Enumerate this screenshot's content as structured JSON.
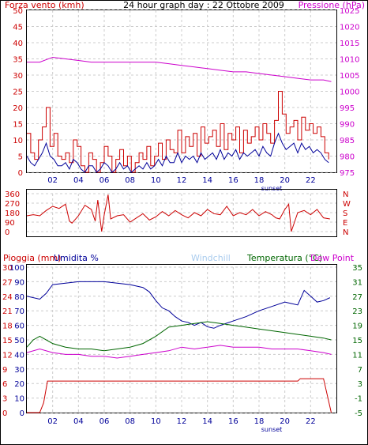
{
  "chart_data": [
    {
      "type": "line",
      "title": "24 hour graph day : 22 Ottobre 2009",
      "left_axis_label": "Forza vento (kmh)",
      "right_axis_label": "Pressione (hPa)",
      "left_ylim": [
        0,
        50
      ],
      "left_ticks": [
        "0",
        "5",
        "10",
        "15",
        "20",
        "25",
        "30",
        "35",
        "40",
        "45",
        "50"
      ],
      "right_ylim": [
        975,
        1025
      ],
      "right_ticks": [
        "975",
        "980",
        "985",
        "990",
        "995",
        "1000",
        "1005",
        "1010",
        "1015",
        "1020",
        "1025"
      ],
      "x_ticks": [
        "02",
        "04",
        "06",
        "08",
        "10",
        "12",
        "14",
        "16",
        "18",
        "20",
        "22"
      ],
      "x_annotation": "sunset",
      "xlim": [
        0,
        24
      ],
      "grid": true,
      "series": [
        {
          "color": "#cc0000",
          "axis": "left",
          "x": [
            0,
            0.3,
            0.6,
            0.9,
            1.2,
            1.5,
            1.8,
            2.1,
            2.4,
            2.7,
            3.0,
            3.3,
            3.6,
            3.9,
            4.2,
            4.5,
            4.8,
            5.1,
            5.4,
            5.7,
            6.0,
            6.3,
            6.6,
            6.9,
            7.2,
            7.5,
            7.8,
            8.1,
            8.4,
            8.7,
            9.0,
            9.3,
            9.6,
            9.9,
            10.2,
            10.5,
            10.8,
            11.1,
            11.4,
            11.7,
            12.0,
            12.3,
            12.6,
            12.9,
            13.2,
            13.5,
            13.8,
            14.1,
            14.4,
            14.7,
            15.0,
            15.3,
            15.6,
            15.9,
            16.2,
            16.5,
            16.8,
            17.1,
            17.4,
            17.7,
            18.0,
            18.3,
            18.6,
            18.9,
            19.2,
            19.5,
            19.8,
            20.1,
            20.4,
            20.7,
            21.0,
            21.3,
            21.6,
            21.9,
            22.2,
            22.5,
            22.8,
            23.1,
            23.4
          ],
          "values": [
            12,
            6,
            4,
            10,
            14,
            20,
            8,
            12,
            5,
            4,
            6,
            3,
            10,
            8,
            2,
            0,
            6,
            4,
            0,
            3,
            8,
            5,
            0,
            4,
            7,
            2,
            5,
            0,
            3,
            6,
            4,
            8,
            2,
            5,
            9,
            4,
            10,
            7,
            6,
            13,
            6,
            11,
            8,
            12,
            5,
            14,
            9,
            11,
            13,
            8,
            15,
            7,
            12,
            10,
            14,
            6,
            13,
            9,
            11,
            14,
            10,
            15,
            12,
            9,
            16,
            25,
            18,
            12,
            14,
            16,
            10,
            17,
            13,
            15,
            12,
            14,
            11,
            6,
            4
          ]
        },
        {
          "color": "#000099",
          "axis": "left",
          "x": [
            0,
            0.3,
            0.6,
            0.9,
            1.2,
            1.5,
            1.8,
            2.1,
            2.4,
            2.7,
            3.0,
            3.3,
            3.6,
            3.9,
            4.2,
            4.5,
            4.8,
            5.1,
            5.4,
            5.7,
            6.0,
            6.3,
            6.6,
            6.9,
            7.2,
            7.5,
            7.8,
            8.1,
            8.4,
            8.7,
            9.0,
            9.3,
            9.6,
            9.9,
            10.2,
            10.5,
            10.8,
            11.1,
            11.4,
            11.7,
            12.0,
            12.3,
            12.6,
            12.9,
            13.2,
            13.5,
            13.8,
            14.1,
            14.4,
            14.7,
            15.0,
            15.3,
            15.6,
            15.9,
            16.2,
            16.5,
            16.8,
            17.1,
            17.4,
            17.7,
            18.0,
            18.3,
            18.6,
            18.9,
            19.2,
            19.5,
            19.8,
            20.1,
            20.4,
            20.7,
            21.0,
            21.3,
            21.6,
            21.9,
            22.2,
            22.5,
            22.8,
            23.1,
            23.4
          ],
          "values": [
            5,
            3,
            2,
            4,
            6,
            9,
            5,
            4,
            2,
            2,
            3,
            1,
            4,
            3,
            1,
            0,
            2,
            2,
            0,
            1,
            3,
            2,
            0,
            1,
            3,
            1,
            2,
            0,
            1,
            2,
            1,
            3,
            1,
            2,
            4,
            2,
            5,
            3,
            3,
            6,
            3,
            5,
            4,
            5,
            3,
            6,
            4,
            5,
            6,
            4,
            7,
            4,
            6,
            5,
            7,
            4,
            6,
            5,
            6,
            7,
            5,
            8,
            6,
            5,
            9,
            12,
            9,
            7,
            8,
            9,
            6,
            9,
            7,
            8,
            6,
            7,
            6,
            4,
            3
          ]
        },
        {
          "color": "#cc00cc",
          "axis": "right",
          "x": [
            0,
            1,
            2,
            3,
            4,
            5,
            6,
            7,
            8,
            9,
            10,
            11,
            12,
            13,
            14,
            15,
            16,
            17,
            18,
            19,
            20,
            21,
            22,
            23,
            23.6
          ],
          "values": [
            1009,
            1009,
            1010.5,
            1010,
            1009.5,
            1009,
            1009,
            1009,
            1009,
            1009,
            1009,
            1008.5,
            1008,
            1007.5,
            1007,
            1006.5,
            1006,
            1006,
            1005.5,
            1005,
            1004.5,
            1004,
            1003.5,
            1003.5,
            1003
          ]
        }
      ]
    },
    {
      "type": "line",
      "title": "",
      "y_ticks": [
        "0",
        "90",
        "180",
        "270",
        "360"
      ],
      "ylim": [
        0,
        360
      ],
      "right_ticks": [
        "N",
        "W",
        "S",
        "E",
        "N"
      ],
      "xlim": [
        0,
        24
      ],
      "grid": true,
      "series": [
        {
          "color": "#cc0000",
          "x": [
            0,
            0.5,
            1,
            1.5,
            2,
            2.5,
            3,
            3.3,
            3.5,
            4,
            4.5,
            5,
            5.3,
            5.5,
            5.8,
            6,
            6.3,
            6.5,
            7,
            7.5,
            8,
            8.5,
            9,
            9.5,
            10,
            10.5,
            11,
            11.5,
            12,
            12.5,
            13,
            13.5,
            14,
            14.5,
            15,
            15.5,
            16,
            16.5,
            17,
            17.5,
            18,
            18.5,
            19,
            19.3,
            19.6,
            20,
            20.3,
            20.5,
            21,
            21.5,
            22,
            22.5,
            23,
            23.5
          ],
          "values": [
            150,
            160,
            150,
            200,
            240,
            220,
            260,
            100,
            80,
            150,
            250,
            210,
            100,
            300,
            0,
            160,
            350,
            120,
            150,
            160,
            90,
            130,
            170,
            110,
            140,
            190,
            150,
            200,
            160,
            130,
            180,
            150,
            210,
            170,
            160,
            240,
            150,
            180,
            160,
            210,
            150,
            190,
            160,
            130,
            120,
            210,
            260,
            0,
            180,
            200,
            160,
            210,
            130,
            120
          ]
        }
      ]
    },
    {
      "type": "line",
      "title": "",
      "left_axis_label": "Pioggia (mm)",
      "left2_axis_label": "Umidita %",
      "center_label": "Windchill",
      "right_axis_label": "Temperatura (°C)",
      "right2_axis_label": "Dew Point",
      "rain_ticks": [
        "0",
        "3",
        "6",
        "9",
        "12",
        "15",
        "18",
        "21",
        "24",
        "27",
        "30"
      ],
      "rain_ylim": [
        0,
        30
      ],
      "humidity_ticks": [
        "0",
        "10",
        "20",
        "30",
        "40",
        "50",
        "60",
        "70",
        "80",
        "90",
        "100"
      ],
      "humidity_ylim": [
        0,
        100
      ],
      "temp_ticks": [
        "-5",
        "-1",
        "3",
        "7",
        "11",
        "15",
        "19",
        "23",
        "27",
        "31",
        "35"
      ],
      "temp_ylim": [
        -5,
        35
      ],
      "x_ticks": [
        "02",
        "04",
        "06",
        "08",
        "10",
        "12",
        "14",
        "16",
        "18",
        "20",
        "22"
      ],
      "x_annotation": "sunset",
      "xlim": [
        0,
        24
      ],
      "grid": true,
      "series": [
        {
          "name": "Umidita %",
          "color": "#000099",
          "axis": "humidity",
          "x": [
            0,
            1,
            1.5,
            2,
            3,
            4,
            5,
            6,
            7,
            8,
            9,
            9.5,
            10,
            10.5,
            11,
            11.5,
            12,
            12.5,
            13,
            13.5,
            14,
            14.5,
            15,
            16,
            17,
            18,
            19,
            20,
            20.5,
            21,
            21.5,
            22,
            22.5,
            23,
            23.5
          ],
          "values": [
            80,
            78,
            82,
            88,
            89,
            90,
            90,
            90,
            89,
            88,
            86,
            83,
            77,
            72,
            70,
            66,
            63,
            62,
            60,
            62,
            59,
            58,
            60,
            63,
            66,
            70,
            73,
            76,
            75,
            74,
            84,
            80,
            76,
            77,
            79
          ]
        },
        {
          "name": "Temperatura (°C)",
          "color": "#006600",
          "axis": "temp",
          "x": [
            0,
            0.5,
            1,
            2,
            3,
            4,
            5,
            6,
            7,
            8,
            9,
            10,
            11,
            12,
            13,
            14,
            15,
            16,
            17,
            18,
            19,
            20,
            21,
            22,
            23,
            23.6
          ],
          "values": [
            13,
            15,
            16,
            14,
            13,
            12.5,
            12.5,
            12,
            12.5,
            13,
            14,
            16,
            18.5,
            19,
            19.5,
            20,
            19.5,
            19,
            18.5,
            18,
            17.5,
            17,
            16.5,
            16,
            15.5,
            15
          ]
        },
        {
          "name": "Dew Point",
          "color": "#cc00cc",
          "axis": "temp",
          "x": [
            0,
            1,
            2,
            3,
            4,
            5,
            6,
            7,
            8,
            9,
            10,
            11,
            12,
            13,
            14,
            15,
            16,
            17,
            18,
            19,
            20,
            21,
            22,
            23,
            23.6
          ],
          "values": [
            11.5,
            12.5,
            11.5,
            11,
            11,
            10.5,
            10.5,
            10,
            10.5,
            11,
            11.5,
            12,
            13,
            12.5,
            13,
            13.5,
            13,
            13,
            13,
            12.5,
            12.5,
            12.5,
            12,
            11.5,
            11
          ]
        },
        {
          "name": "Pioggia (mm)",
          "color": "#cc0000",
          "axis": "rain",
          "x": [
            0,
            1,
            1.3,
            1.6,
            2,
            3,
            4,
            5,
            6,
            7,
            8,
            9,
            10,
            11,
            12,
            13,
            14,
            15,
            16,
            17,
            18,
            19,
            20,
            21,
            21.2,
            22,
            23,
            23.6
          ],
          "values": [
            0,
            0,
            2,
            6.5,
            6.5,
            6.5,
            6.5,
            6.5,
            6.5,
            6.5,
            6.5,
            6.5,
            6.5,
            6.5,
            6.5,
            6.5,
            6.5,
            6.5,
            6.5,
            6.5,
            6.5,
            6.5,
            6.5,
            6.5,
            7,
            7,
            7,
            0
          ]
        }
      ]
    }
  ]
}
